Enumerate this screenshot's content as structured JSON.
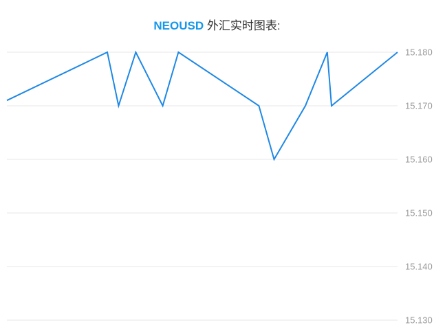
{
  "title": {
    "symbol": "NEOUSD",
    "suffix": " 外汇实时图表:",
    "symbol_color": "#1697ea",
    "text_color": "#333333"
  },
  "chart_data": {
    "type": "line",
    "title": "NEOUSD 外汇实时图表:",
    "x_axis": {
      "labels_visible": false
    },
    "y_axis": {
      "side": "right",
      "min": 15.13,
      "max": 15.18,
      "ticks": [
        "15.180",
        "15.170",
        "15.160",
        "15.150",
        "15.140",
        "15.130"
      ],
      "grid": true
    },
    "colors": {
      "background": "#ffffff",
      "grid": "#e7e7e7",
      "label": "#9a9a9a"
    },
    "series": [
      {
        "name": "NEOUSD",
        "color": "#1e88e5",
        "points": [
          {
            "x": 0.0,
            "value": 15.171
          },
          {
            "x": 0.257,
            "value": 15.18
          },
          {
            "x": 0.286,
            "value": 15.17
          },
          {
            "x": 0.33,
            "value": 15.18
          },
          {
            "x": 0.399,
            "value": 15.17
          },
          {
            "x": 0.439,
            "value": 15.18
          },
          {
            "x": 0.645,
            "value": 15.17
          },
          {
            "x": 0.684,
            "value": 15.16
          },
          {
            "x": 0.764,
            "value": 15.17
          },
          {
            "x": 0.82,
            "value": 15.18
          },
          {
            "x": 0.831,
            "value": 15.17
          },
          {
            "x": 1.0,
            "value": 15.18
          }
        ]
      }
    ]
  }
}
